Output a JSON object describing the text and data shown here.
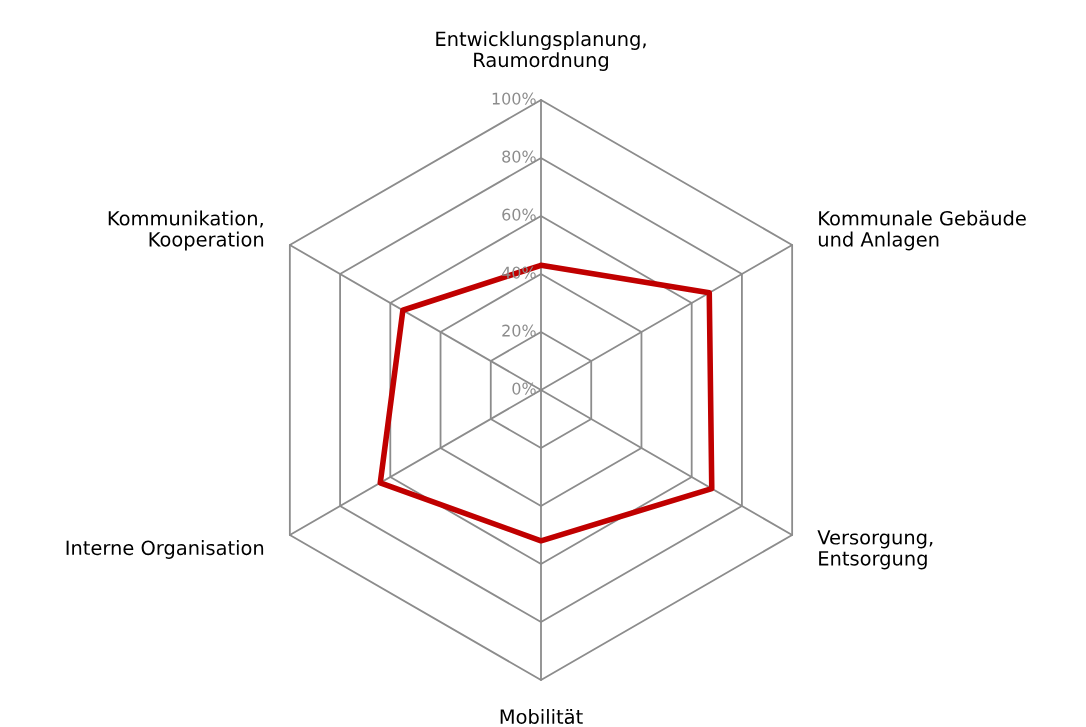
{
  "chart_data": {
    "type": "radar",
    "categories": [
      "Entwicklungsplanung,\nRaumordnung",
      "Kommunale Gebäude\nund Anlagen",
      "Versorgung,\nEntsorgung",
      "Mobilität",
      "Interne Organisation",
      "Kommunikation,\nKooperation"
    ],
    "series": [
      {
        "color": "#c00000",
        "values": [
          43,
          67,
          68,
          52,
          64,
          55
        ]
      }
    ],
    "ylim": [
      0,
      100
    ],
    "yticks": [
      {
        "value": 0,
        "label": "0%"
      },
      {
        "value": 20,
        "label": "20%"
      },
      {
        "value": 40,
        "label": "40%"
      },
      {
        "value": 60,
        "label": "60%"
      },
      {
        "value": 80,
        "label": "80%"
      },
      {
        "value": 100,
        "label": "100%"
      }
    ],
    "grid": true
  }
}
